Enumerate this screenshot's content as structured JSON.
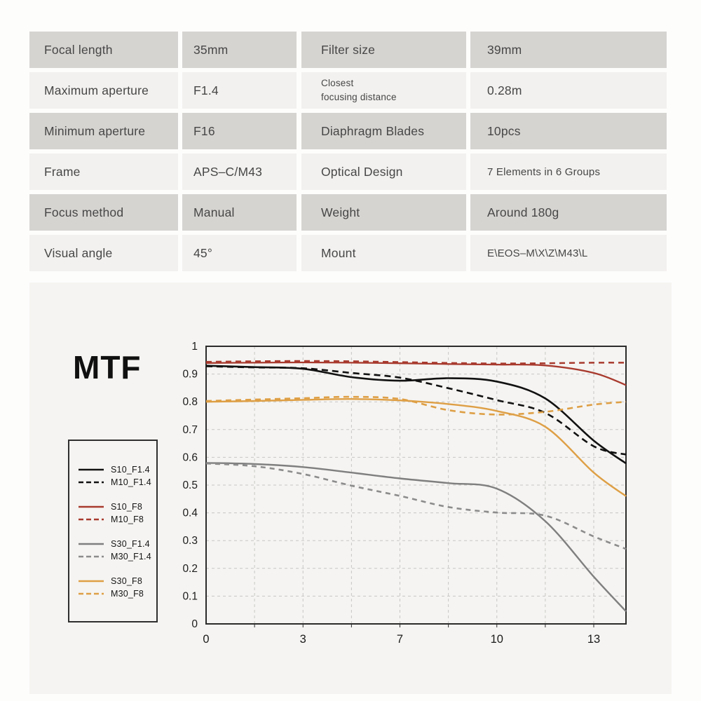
{
  "page": {
    "background": "#fdfdfc",
    "panel_background": "#f5f4f2"
  },
  "spec_table": {
    "left": [
      {
        "label": "Focal length",
        "value": "35mm",
        "shade": "dark"
      },
      {
        "label": "Maximum aperture",
        "value": "F1.4",
        "shade": "light"
      },
      {
        "label": "Minimum aperture",
        "value": "F16",
        "shade": "dark"
      },
      {
        "label": "Frame",
        "value": "APS–C/M43",
        "shade": "light"
      },
      {
        "label": "Focus method",
        "value": "Manual",
        "shade": "dark"
      },
      {
        "label": "Visual angle",
        "value": "45°",
        "shade": "light"
      }
    ],
    "right": [
      {
        "label": "Filter size",
        "value": "39mm",
        "shade": "dark"
      },
      {
        "label": "Closest\nfocusing distance",
        "value": "0.28m",
        "shade": "light",
        "label_small": true
      },
      {
        "label": "Diaphragm Blades",
        "value": "10pcs",
        "shade": "dark"
      },
      {
        "label": "Optical Design",
        "value": "7 Elements in 6 Groups",
        "shade": "light",
        "value_small": true
      },
      {
        "label": "Weight",
        "value": "Around 180g",
        "shade": "dark"
      },
      {
        "label": "Mount",
        "value": "E\\EOS–M\\X\\Z\\M43\\L",
        "shade": "light",
        "value_small": true
      }
    ]
  },
  "chart": {
    "title": "MTF"
  },
  "chart_data": {
    "type": "line",
    "title": "MTF",
    "xlabel": "",
    "ylabel": "",
    "x_ticks": [
      0,
      3,
      7,
      10,
      13
    ],
    "x_tick_labels": [
      "0",
      "3",
      "7",
      "10",
      "13"
    ],
    "x_max": 14,
    "ylim": [
      0,
      1
    ],
    "y_tick_labels": [
      "1",
      "0.9",
      "0.8",
      "0.7",
      "0.6",
      "0.5",
      "0.4",
      "0.3",
      "0.2",
      "0.1",
      "0"
    ],
    "grid": true,
    "legend_position": "left",
    "axis_color": "#2b2b2b",
    "grid_color": "#c7c6c4",
    "series": [
      {
        "name": "S10_F1.4",
        "color": "#111111",
        "dash": null,
        "width": 2.6,
        "points": [
          [
            0,
            0.93
          ],
          [
            1.5,
            0.925
          ],
          [
            3,
            0.919
          ],
          [
            5,
            0.889
          ],
          [
            7,
            0.876
          ],
          [
            8.5,
            0.885
          ],
          [
            10,
            0.873
          ],
          [
            11.5,
            0.812
          ],
          [
            13,
            0.66
          ],
          [
            14,
            0.578
          ]
        ]
      },
      {
        "name": "M10_F1.4",
        "color": "#111111",
        "dash": "9 6",
        "width": 2.6,
        "points": [
          [
            0,
            0.928
          ],
          [
            1.5,
            0.924
          ],
          [
            3,
            0.921
          ],
          [
            5,
            0.904
          ],
          [
            7,
            0.887
          ],
          [
            8.5,
            0.849
          ],
          [
            10,
            0.806
          ],
          [
            11.5,
            0.76
          ],
          [
            13,
            0.64
          ],
          [
            14,
            0.61
          ]
        ]
      },
      {
        "name": "S10_F8",
        "color": "#a83a2e",
        "dash": null,
        "width": 2.3,
        "points": [
          [
            0,
            0.94
          ],
          [
            1.5,
            0.941
          ],
          [
            3,
            0.942
          ],
          [
            5,
            0.941
          ],
          [
            7,
            0.939
          ],
          [
            8.5,
            0.936
          ],
          [
            10,
            0.934
          ],
          [
            11.5,
            0.931
          ],
          [
            13,
            0.904
          ],
          [
            14,
            0.86
          ]
        ]
      },
      {
        "name": "M10_F8",
        "color": "#a83a2e",
        "dash": "8 6",
        "width": 2.5,
        "points": [
          [
            0,
            0.944
          ],
          [
            1.5,
            0.946
          ],
          [
            3,
            0.947
          ],
          [
            5,
            0.946
          ],
          [
            7,
            0.943
          ],
          [
            8.5,
            0.94
          ],
          [
            10,
            0.938
          ],
          [
            11.5,
            0.939
          ],
          [
            13,
            0.941
          ],
          [
            14,
            0.941
          ]
        ]
      },
      {
        "name": "S30_F1.4",
        "color": "#7f7f7f",
        "dash": null,
        "width": 2.4,
        "points": [
          [
            0,
            0.58
          ],
          [
            1.5,
            0.576
          ],
          [
            3,
            0.565
          ],
          [
            5,
            0.545
          ],
          [
            7,
            0.524
          ],
          [
            8.5,
            0.507
          ],
          [
            10,
            0.487
          ],
          [
            11.5,
            0.37
          ],
          [
            13,
            0.17
          ],
          [
            14,
            0.045
          ]
        ]
      },
      {
        "name": "M30_F1.4",
        "color": "#8c8c8c",
        "dash": "7 6",
        "width": 2.6,
        "points": [
          [
            0,
            0.578
          ],
          [
            1.5,
            0.568
          ],
          [
            3,
            0.54
          ],
          [
            5,
            0.498
          ],
          [
            7,
            0.461
          ],
          [
            8.5,
            0.421
          ],
          [
            10,
            0.401
          ],
          [
            11.5,
            0.39
          ],
          [
            13,
            0.315
          ],
          [
            14,
            0.27
          ]
        ]
      },
      {
        "name": "S30_F8",
        "color": "#de9f45",
        "dash": null,
        "width": 2.4,
        "points": [
          [
            0,
            0.8
          ],
          [
            1.5,
            0.803
          ],
          [
            3,
            0.807
          ],
          [
            5,
            0.81
          ],
          [
            7,
            0.805
          ],
          [
            8.5,
            0.792
          ],
          [
            10,
            0.767
          ],
          [
            11.5,
            0.71
          ],
          [
            13,
            0.545
          ],
          [
            14,
            0.46
          ]
        ]
      },
      {
        "name": "M30_F8",
        "color": "#de9f45",
        "dash": "8 6",
        "width": 2.6,
        "points": [
          [
            0,
            0.803
          ],
          [
            1.5,
            0.808
          ],
          [
            3,
            0.813
          ],
          [
            5,
            0.818
          ],
          [
            7,
            0.81
          ],
          [
            8.5,
            0.77
          ],
          [
            10,
            0.754
          ],
          [
            11.5,
            0.764
          ],
          [
            13,
            0.79
          ],
          [
            14,
            0.8
          ]
        ]
      }
    ]
  }
}
